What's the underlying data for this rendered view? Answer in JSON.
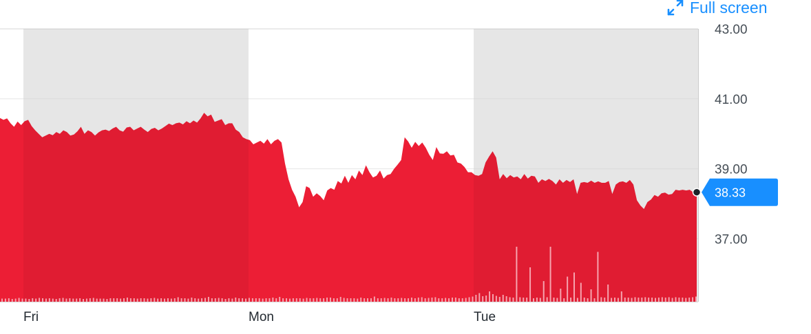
{
  "toolbar": {
    "fullscreen_label": "Full screen"
  },
  "chart_data": {
    "type": "area",
    "title": "",
    "xlabel": "",
    "ylabel": "",
    "ylim": [
      35.2,
      43.0
    ],
    "y_ticks": [
      "43.00",
      "41.00",
      "39.00",
      "37.00"
    ],
    "y_tick_values": [
      43,
      41,
      39,
      37
    ],
    "x_ticks": [
      "Fri",
      "Mon",
      "Tue"
    ],
    "grid": true,
    "shaded_sessions": [
      "Fri",
      "Tue"
    ],
    "current_value": "38.33",
    "colors": {
      "area": "#ec1e35",
      "shade": "#f3f3f3",
      "badge": "#188fff",
      "grid": "#e6e6e6"
    },
    "series": [
      {
        "values": [
          40.45,
          40.4,
          40.44,
          40.3,
          40.2,
          40.35,
          40.25,
          40.36,
          40.4,
          40.22,
          40.1,
          40.0,
          39.9,
          39.95,
          40.0,
          39.96,
          40.05,
          40.0,
          40.1,
          40.05,
          39.95,
          39.98,
          40.07,
          40.2,
          40.0,
          40.1,
          40.05,
          39.95,
          40.04,
          40.1,
          40.12,
          40.08,
          40.15,
          40.2,
          40.1,
          40.06,
          40.18,
          40.2,
          40.1,
          40.15,
          40.2,
          40.12,
          40.05,
          40.14,
          40.17,
          40.1,
          40.15,
          40.22,
          40.29,
          40.25,
          40.3,
          40.32,
          40.27,
          40.36,
          40.3,
          40.38,
          40.32,
          40.44,
          40.6,
          40.5,
          40.55,
          40.34,
          40.38,
          40.42,
          40.25,
          40.3,
          40.3,
          40.12,
          40.05,
          39.9,
          39.85,
          39.82,
          39.7,
          39.75,
          39.8,
          39.72,
          39.85,
          39.7,
          39.8,
          39.85,
          39.75,
          39.15,
          38.7,
          38.4,
          38.2,
          37.9,
          38.05,
          38.5,
          38.45,
          38.2,
          38.3,
          38.22,
          38.1,
          38.38,
          38.45,
          38.4,
          38.65,
          38.58,
          38.8,
          38.6,
          38.82,
          38.7,
          38.95,
          38.82,
          39.1,
          38.9,
          38.75,
          38.8,
          38.95,
          38.72,
          38.82,
          38.85,
          39.0,
          39.12,
          39.25,
          39.9,
          39.78,
          39.6,
          39.77,
          39.65,
          39.75,
          39.6,
          39.4,
          39.25,
          39.62,
          39.44,
          39.43,
          39.5,
          39.38,
          39.4,
          39.18,
          39.15,
          39.05,
          38.9,
          38.9,
          38.82,
          38.8,
          38.85,
          39.18,
          39.35,
          39.5,
          39.32,
          38.7,
          38.85,
          38.73,
          38.82,
          38.75,
          38.78,
          38.7,
          38.85,
          38.72,
          38.8,
          38.78,
          38.6,
          38.7,
          38.65,
          38.71,
          38.65,
          38.55,
          38.7,
          38.6,
          38.68,
          38.62,
          38.7,
          38.28,
          38.6,
          38.62,
          38.6,
          38.66,
          38.6,
          38.64,
          38.6,
          38.6,
          38.65,
          38.28,
          38.55,
          38.62,
          38.64,
          38.6,
          38.68,
          38.55,
          38.1,
          37.95,
          37.85,
          38.05,
          38.12,
          38.25,
          38.2,
          38.3,
          38.32,
          38.26,
          38.28,
          38.4,
          38.38,
          38.4,
          38.38,
          38.4,
          38.33,
          38.33
        ]
      },
      {
        "name": "volume",
        "values": [
          0.9,
          0.9,
          1.0,
          0.8,
          0.9,
          1.1,
          0.9,
          0.9,
          0.8,
          1.0,
          0.9,
          1.1,
          1.0,
          0.9,
          1.0,
          0.9,
          0.8,
          1.0,
          1.1,
          0.9,
          1.0,
          0.9,
          0.9,
          1.0,
          0.8,
          0.9,
          1.0,
          1.1,
          0.9,
          0.9,
          0.9,
          0.8,
          1.0,
          1.0,
          1.0,
          0.9,
          1.0,
          1.2,
          1.0,
          1.0,
          0.9,
          1.0,
          1.0,
          0.9,
          1.0,
          1.1,
          0.9,
          1.0,
          0.9,
          1.0,
          0.9,
          1.0,
          1.3,
          1.0,
          1.0,
          0.9,
          1.2,
          1.0,
          0.9,
          1.0,
          1.1,
          1.4,
          1.0,
          1.0,
          1.1,
          1.0,
          0.8,
          1.0,
          0.9,
          1.2,
          1.0,
          1.0,
          0.9,
          1.1,
          1.0,
          1.0,
          1.0,
          0.9,
          1.0,
          1.0,
          1.2,
          1.0,
          1.4,
          1.0,
          1.0,
          0.9,
          1.0,
          1.0,
          1.0,
          0.9,
          1.1,
          1.0,
          1.0,
          1.1,
          1.0,
          1.0,
          1.2,
          1.2,
          1.0,
          1.0,
          1.4,
          1.1,
          1.0,
          1.0,
          1.0,
          0.9,
          1.2,
          1.0,
          1.0,
          1.0,
          1.5,
          1.0,
          1.0,
          1.1,
          1.0,
          1.2,
          1.0,
          1.0,
          1.1,
          1.0,
          1.0,
          1.2,
          1.0,
          1.2,
          1.3,
          1.0,
          1.1,
          1.2,
          1.3,
          1.0,
          1.0,
          1.1,
          1.0,
          1.2,
          1.2,
          1.0,
          1.0,
          1.1,
          1.3,
          1.5,
          2.0,
          2.5,
          1.6,
          1.8,
          3.0,
          2.2,
          1.7,
          1.4,
          2.0,
          1.6,
          1.3,
          1.2,
          1.6,
          1.3,
          1.2,
          1.2,
          1.1,
          1.0,
          1.2,
          1.1,
          1.0,
          1.3,
          1.2,
          1.2,
          1.1,
          1.1,
          1.0,
          1.5,
          1.2,
          1.3,
          1.1,
          1.1,
          1.2,
          1.0,
          1.1,
          1.0,
          1.2,
          1.3,
          1.2,
          1.0,
          1.1,
          1.2,
          1.1,
          1.0,
          1.2,
          1.2,
          1.1,
          1.3,
          1.2,
          1.2,
          1.3,
          1.2,
          1.2,
          1.1,
          1.2,
          1.3,
          1.2,
          1.3,
          1.1,
          1.3,
          1.2,
          1.2,
          1.1,
          1.2,
          1.3,
          1.5
        ]
      }
    ],
    "volume_spikes": [
      [
        152,
        16
      ],
      [
        156,
        10
      ],
      [
        160,
        6
      ],
      [
        162,
        16
      ],
      [
        165,
        3.8
      ],
      [
        167,
        7.3
      ],
      [
        169,
        8.5
      ],
      [
        171,
        5.5
      ],
      [
        174,
        3.6
      ],
      [
        176,
        14.5
      ],
      [
        179,
        5
      ],
      [
        183,
        3
      ]
    ]
  }
}
